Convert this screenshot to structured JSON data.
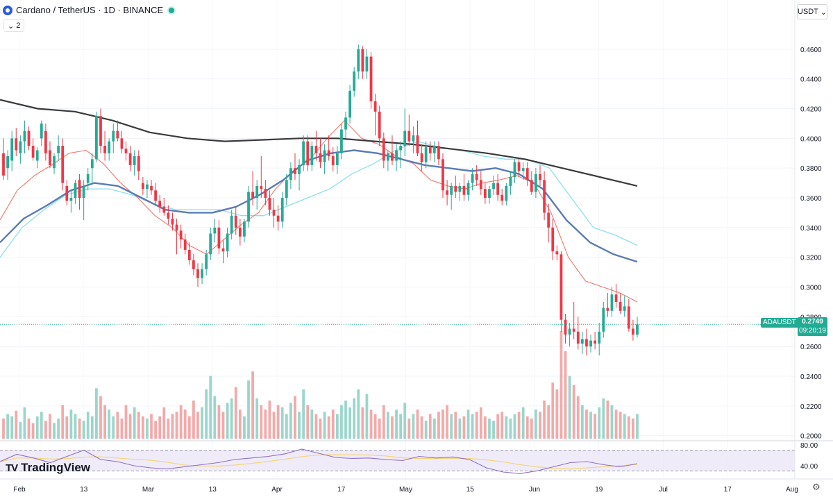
{
  "header": {
    "title": "Cardano / TetherUS · 1D · BINANCE",
    "indicator_count": "2",
    "currency": "USDT"
  },
  "branding": {
    "logo_text": "TradingView",
    "logo_mark": "TV"
  },
  "colors": {
    "up": "#22ab94",
    "down": "#f23645",
    "up_vol": "#9ad6cb",
    "down_vol": "#f4a9a9",
    "ma_fast": "#f0776b",
    "ma_cyan": "#8be0ec",
    "ma_blue": "#5b7cb4",
    "ma_black": "#3a3a3a",
    "rsi_line": "#8d6fc8",
    "rsi_ma": "#f4d67a"
  },
  "price_axis": {
    "labels": [
      "0.4600",
      "0.4400",
      "0.4200",
      "0.4000",
      "0.3800",
      "0.3600",
      "0.3400",
      "0.3200",
      "0.3000",
      "0.2800",
      "0.2600",
      "0.2400",
      "0.2200",
      "0.2000"
    ]
  },
  "rsi_axis": {
    "labels": [
      "80.00",
      "40.00"
    ],
    "band": [
      30,
      70
    ]
  },
  "time_axis": {
    "labels": [
      "Feb",
      "13",
      "Mar",
      "13",
      "Apr",
      "17",
      "May",
      "15",
      "Jun",
      "19",
      "Jul",
      "17",
      "Aug"
    ]
  },
  "last_price": {
    "symbol": "ADAUSDT",
    "price": "0.2749",
    "countdown": "09:20:19"
  },
  "chart_data": {
    "type": "candlestick",
    "symbol": "ADAUSDT",
    "interval": "1D",
    "y_range": [
      0.198,
      0.48
    ],
    "candles_ohlc_approx": [
      [
        0.39,
        0.4,
        0.372,
        0.375
      ],
      [
        0.38,
        0.392,
        0.372,
        0.388
      ],
      [
        0.385,
        0.405,
        0.378,
        0.4
      ],
      [
        0.4,
        0.407,
        0.388,
        0.392
      ],
      [
        0.39,
        0.402,
        0.383,
        0.398
      ],
      [
        0.398,
        0.412,
        0.39,
        0.405
      ],
      [
        0.405,
        0.408,
        0.392,
        0.395
      ],
      [
        0.395,
        0.4,
        0.385,
        0.387
      ],
      [
        0.385,
        0.394,
        0.38,
        0.392
      ],
      [
        0.4,
        0.412,
        0.395,
        0.41
      ],
      [
        0.405,
        0.41,
        0.385,
        0.39
      ],
      [
        0.392,
        0.398,
        0.38,
        0.382
      ],
      [
        0.38,
        0.39,
        0.376,
        0.388
      ],
      [
        0.39,
        0.402,
        0.385,
        0.395
      ],
      [
        0.395,
        0.4,
        0.365,
        0.37
      ],
      [
        0.368,
        0.372,
        0.355,
        0.358
      ],
      [
        0.358,
        0.365,
        0.35,
        0.36
      ],
      [
        0.36,
        0.372,
        0.356,
        0.37
      ],
      [
        0.372,
        0.376,
        0.352,
        0.36
      ],
      [
        0.36,
        0.372,
        0.345,
        0.368
      ],
      [
        0.37,
        0.38,
        0.365,
        0.376
      ],
      [
        0.38,
        0.39,
        0.37,
        0.386
      ],
      [
        0.386,
        0.418,
        0.384,
        0.415
      ],
      [
        0.415,
        0.42,
        0.39,
        0.395
      ],
      [
        0.395,
        0.405,
        0.385,
        0.39
      ],
      [
        0.39,
        0.4,
        0.385,
        0.398
      ],
      [
        0.398,
        0.41,
        0.39,
        0.405
      ],
      [
        0.405,
        0.412,
        0.398,
        0.4
      ],
      [
        0.4,
        0.405,
        0.39,
        0.393
      ],
      [
        0.393,
        0.398,
        0.385,
        0.39
      ],
      [
        0.39,
        0.395,
        0.378,
        0.382
      ],
      [
        0.382,
        0.392,
        0.375,
        0.388
      ],
      [
        0.388,
        0.392,
        0.372,
        0.378
      ],
      [
        0.37,
        0.374,
        0.362,
        0.366
      ],
      [
        0.366,
        0.372,
        0.36,
        0.369
      ],
      [
        0.368,
        0.372,
        0.362,
        0.365
      ],
      [
        0.365,
        0.37,
        0.355,
        0.358
      ],
      [
        0.358,
        0.362,
        0.35,
        0.354
      ],
      [
        0.354,
        0.36,
        0.348,
        0.35
      ],
      [
        0.35,
        0.355,
        0.342,
        0.346
      ],
      [
        0.346,
        0.35,
        0.338,
        0.342
      ],
      [
        0.342,
        0.346,
        0.322,
        0.338
      ],
      [
        0.338,
        0.342,
        0.326,
        0.332
      ],
      [
        0.332,
        0.336,
        0.322,
        0.325
      ],
      [
        0.325,
        0.33,
        0.315,
        0.318
      ],
      [
        0.318,
        0.322,
        0.308,
        0.312
      ],
      [
        0.312,
        0.316,
        0.3,
        0.306
      ],
      [
        0.306,
        0.316,
        0.302,
        0.312
      ],
      [
        0.312,
        0.325,
        0.308,
        0.322
      ],
      [
        0.322,
        0.34,
        0.318,
        0.336
      ],
      [
        0.336,
        0.346,
        0.33,
        0.34
      ],
      [
        0.34,
        0.345,
        0.322,
        0.326
      ],
      [
        0.326,
        0.332,
        0.316,
        0.324
      ],
      [
        0.324,
        0.34,
        0.32,
        0.336
      ],
      [
        0.336,
        0.352,
        0.332,
        0.348
      ],
      [
        0.348,
        0.354,
        0.335,
        0.34
      ],
      [
        0.34,
        0.346,
        0.328,
        0.334
      ],
      [
        0.334,
        0.346,
        0.33,
        0.344
      ],
      [
        0.344,
        0.368,
        0.34,
        0.364
      ],
      [
        0.364,
        0.378,
        0.355,
        0.36
      ],
      [
        0.36,
        0.372,
        0.352,
        0.368
      ],
      [
        0.368,
        0.388,
        0.36,
        0.366
      ],
      [
        0.366,
        0.372,
        0.355,
        0.36
      ],
      [
        0.36,
        0.365,
        0.348,
        0.352
      ],
      [
        0.352,
        0.36,
        0.34,
        0.348
      ],
      [
        0.348,
        0.355,
        0.338,
        0.344
      ],
      [
        0.344,
        0.364,
        0.34,
        0.36
      ],
      [
        0.36,
        0.376,
        0.355,
        0.372
      ],
      [
        0.372,
        0.384,
        0.366,
        0.38
      ],
      [
        0.38,
        0.39,
        0.372,
        0.376
      ],
      [
        0.376,
        0.386,
        0.365,
        0.382
      ],
      [
        0.382,
        0.402,
        0.378,
        0.398
      ],
      [
        0.398,
        0.402,
        0.378,
        0.382
      ],
      [
        0.382,
        0.398,
        0.378,
        0.395
      ],
      [
        0.395,
        0.405,
        0.385,
        0.39
      ],
      [
        0.39,
        0.4,
        0.38,
        0.384
      ],
      [
        0.384,
        0.396,
        0.376,
        0.392
      ],
      [
        0.392,
        0.402,
        0.385,
        0.388
      ],
      [
        0.388,
        0.394,
        0.378,
        0.382
      ],
      [
        0.382,
        0.395,
        0.376,
        0.39
      ],
      [
        0.39,
        0.41,
        0.386,
        0.406
      ],
      [
        0.406,
        0.418,
        0.4,
        0.414
      ],
      [
        0.414,
        0.436,
        0.41,
        0.432
      ],
      [
        0.432,
        0.448,
        0.428,
        0.445
      ],
      [
        0.445,
        0.463,
        0.44,
        0.46
      ],
      [
        0.46,
        0.462,
        0.44,
        0.445
      ],
      [
        0.445,
        0.46,
        0.44,
        0.455
      ],
      [
        0.455,
        0.458,
        0.42,
        0.425
      ],
      [
        0.425,
        0.43,
        0.402,
        0.418
      ],
      [
        0.418,
        0.422,
        0.395,
        0.4
      ],
      [
        0.4,
        0.404,
        0.38,
        0.385
      ],
      [
        0.385,
        0.392,
        0.378,
        0.39
      ],
      [
        0.39,
        0.402,
        0.382,
        0.385
      ],
      [
        0.385,
        0.396,
        0.378,
        0.392
      ],
      [
        0.392,
        0.398,
        0.38,
        0.395
      ],
      [
        0.395,
        0.42,
        0.388,
        0.405
      ],
      [
        0.405,
        0.416,
        0.395,
        0.398
      ],
      [
        0.398,
        0.408,
        0.39,
        0.402
      ],
      [
        0.402,
        0.412,
        0.388,
        0.39
      ],
      [
        0.39,
        0.396,
        0.378,
        0.384
      ],
      [
        0.384,
        0.398,
        0.38,
        0.394
      ],
      [
        0.394,
        0.398,
        0.385,
        0.39
      ],
      [
        0.39,
        0.398,
        0.384,
        0.395
      ],
      [
        0.395,
        0.398,
        0.382,
        0.386
      ],
      [
        0.386,
        0.39,
        0.36,
        0.365
      ],
      [
        0.365,
        0.372,
        0.355,
        0.362
      ],
      [
        0.362,
        0.37,
        0.352,
        0.368
      ],
      [
        0.368,
        0.375,
        0.36,
        0.364
      ],
      [
        0.364,
        0.37,
        0.358,
        0.368
      ],
      [
        0.368,
        0.376,
        0.358,
        0.362
      ],
      [
        0.362,
        0.372,
        0.358,
        0.37
      ],
      [
        0.37,
        0.38,
        0.365,
        0.376
      ],
      [
        0.376,
        0.382,
        0.368,
        0.372
      ],
      [
        0.372,
        0.378,
        0.362,
        0.366
      ],
      [
        0.366,
        0.37,
        0.356,
        0.36
      ],
      [
        0.36,
        0.368,
        0.356,
        0.366
      ],
      [
        0.366,
        0.375,
        0.362,
        0.37
      ],
      [
        0.37,
        0.376,
        0.358,
        0.362
      ],
      [
        0.362,
        0.366,
        0.355,
        0.358
      ],
      [
        0.358,
        0.37,
        0.355,
        0.368
      ],
      [
        0.368,
        0.378,
        0.362,
        0.374
      ],
      [
        0.374,
        0.386,
        0.37,
        0.384
      ],
      [
        0.384,
        0.386,
        0.374,
        0.378
      ],
      [
        0.378,
        0.384,
        0.372,
        0.38
      ],
      [
        0.38,
        0.384,
        0.368,
        0.372
      ],
      [
        0.372,
        0.378,
        0.362,
        0.364
      ],
      [
        0.364,
        0.38,
        0.36,
        0.376
      ],
      [
        0.376,
        0.382,
        0.368,
        0.372
      ],
      [
        0.372,
        0.378,
        0.345,
        0.35
      ],
      [
        0.35,
        0.356,
        0.33,
        0.34
      ],
      [
        0.34,
        0.346,
        0.318,
        0.324
      ],
      [
        0.324,
        0.328,
        0.318,
        0.322
      ],
      [
        0.322,
        0.324,
        0.27,
        0.278
      ],
      [
        0.278,
        0.282,
        0.262,
        0.268
      ],
      [
        0.268,
        0.276,
        0.26,
        0.272
      ],
      [
        0.272,
        0.29,
        0.265,
        0.27
      ],
      [
        0.27,
        0.28,
        0.258,
        0.262
      ],
      [
        0.262,
        0.27,
        0.255,
        0.265
      ],
      [
        0.265,
        0.272,
        0.254,
        0.26
      ],
      [
        0.26,
        0.268,
        0.256,
        0.264
      ],
      [
        0.264,
        0.27,
        0.258,
        0.262
      ],
      [
        0.262,
        0.276,
        0.254,
        0.27
      ],
      [
        0.27,
        0.29,
        0.266,
        0.286
      ],
      [
        0.286,
        0.296,
        0.28,
        0.284
      ],
      [
        0.284,
        0.3,
        0.28,
        0.295
      ],
      [
        0.295,
        0.302,
        0.286,
        0.29
      ],
      [
        0.29,
        0.296,
        0.282,
        0.284
      ],
      [
        0.284,
        0.294,
        0.28,
        0.287
      ],
      [
        0.287,
        0.292,
        0.27,
        0.272
      ],
      [
        0.272,
        0.278,
        0.264,
        0.268
      ],
      [
        0.268,
        0.28,
        0.266,
        0.2749
      ]
    ],
    "volume_relative_approx": [
      18,
      22,
      20,
      25,
      15,
      28,
      18,
      14,
      20,
      24,
      16,
      22,
      14,
      18,
      30,
      20,
      26,
      22,
      18,
      16,
      24,
      20,
      45,
      38,
      30,
      26,
      20,
      24,
      18,
      30,
      22,
      28,
      24,
      20,
      18,
      22,
      16,
      20,
      28,
      18,
      22,
      24,
      30,
      26,
      20,
      34,
      24,
      28,
      44,
      56,
      38,
      30,
      24,
      32,
      36,
      46,
      26,
      20,
      52,
      60,
      36,
      30,
      26,
      34,
      24,
      30,
      28,
      22,
      32,
      38,
      24,
      44,
      30,
      26,
      22,
      18,
      24,
      20,
      26,
      22,
      30,
      34,
      28,
      36,
      44,
      28,
      40,
      26,
      22,
      18,
      30,
      24,
      20,
      26,
      22,
      32,
      18,
      22,
      26,
      20,
      16,
      22,
      18,
      24,
      26,
      30,
      22,
      24,
      18,
      20,
      26,
      22,
      24,
      28,
      20,
      18,
      16,
      22,
      24,
      20,
      18,
      22,
      24,
      28,
      20,
      18,
      26,
      24,
      34,
      30,
      50,
      44,
      96,
      78,
      56,
      48,
      38,
      30,
      26,
      24,
      22,
      28,
      36,
      34,
      30,
      26,
      24,
      22,
      20,
      18,
      22,
      30
    ],
    "series": [
      {
        "name": "MA fast",
        "values_approx": [
          0.345,
          0.365,
          0.375,
          0.382,
          0.39,
          0.392,
          0.383,
          0.37,
          0.36,
          0.348,
          0.34,
          0.328,
          0.322,
          0.332,
          0.342,
          0.35,
          0.366,
          0.378,
          0.386,
          0.4,
          0.412,
          0.4,
          0.396,
          0.388,
          0.383,
          0.372,
          0.368,
          0.366,
          0.37,
          0.372,
          0.375,
          0.37,
          0.35,
          0.32,
          0.304,
          0.3,
          0.296,
          0.29
        ]
      },
      {
        "name": "MA cyan",
        "values_approx": [
          0.32,
          0.34,
          0.352,
          0.362,
          0.366,
          0.366,
          0.362,
          0.356,
          0.352,
          0.352,
          0.352,
          0.348,
          0.348,
          0.354,
          0.36,
          0.366,
          0.376,
          0.383,
          0.392,
          0.398,
          0.394,
          0.392,
          0.388,
          0.386,
          0.386,
          0.38,
          0.36,
          0.34,
          0.335,
          0.328
        ]
      },
      {
        "name": "MA blue",
        "values_approx": [
          0.33,
          0.346,
          0.355,
          0.365,
          0.37,
          0.368,
          0.36,
          0.352,
          0.35,
          0.35,
          0.354,
          0.362,
          0.372,
          0.385,
          0.39,
          0.392,
          0.39,
          0.386,
          0.382,
          0.38,
          0.378,
          0.38,
          0.376,
          0.366,
          0.345,
          0.33,
          0.322,
          0.317
        ]
      },
      {
        "name": "MA black",
        "values_approx": [
          0.426,
          0.42,
          0.418,
          0.412,
          0.404,
          0.4,
          0.398,
          0.399,
          0.4,
          0.4,
          0.398,
          0.396,
          0.393,
          0.39,
          0.386,
          0.38,
          0.374,
          0.368
        ]
      },
      {
        "name": "RSI",
        "values_approx": [
          48,
          62,
          55,
          46,
          58,
          70,
          52,
          48,
          40,
          36,
          34,
          38,
          42,
          46,
          52,
          55,
          58,
          63,
          72,
          64,
          56,
          54,
          55,
          52,
          50,
          58,
          55,
          57,
          52,
          36,
          28,
          25,
          30,
          38,
          46,
          48,
          42,
          38,
          44
        ]
      }
    ]
  }
}
